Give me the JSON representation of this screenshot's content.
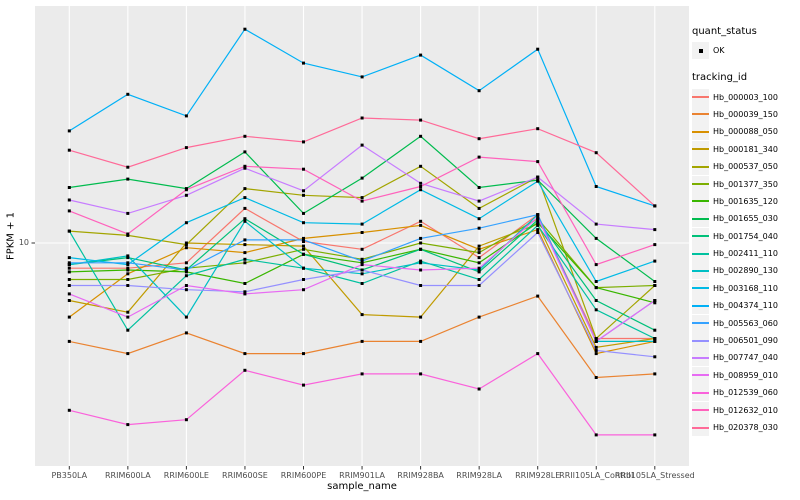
{
  "chart_data": {
    "type": "line",
    "title": "",
    "xlabel": "sample_name",
    "ylabel": "FPKM + 1",
    "y_scale": "log10",
    "y_ticks": [
      10
    ],
    "ylim": [
      2.6,
      45
    ],
    "grid": "major-only",
    "legend_position": "right",
    "point_marker": "small black square (quant_status)",
    "panel_background": "#EBEBEB",
    "gridline_color": "#FFFFFF",
    "categories": [
      "PB350LA",
      "RRIM600LA",
      "RRIM600LE",
      "RRIM600SE",
      "RRIM600PE",
      "RRIM901LA",
      "RRIM928BA",
      "RRIM928LA",
      "RRIM928LE",
      "RRII105LA_Control",
      "RRII105LA_Stressed"
    ],
    "legend": {
      "quant_status_title": "quant_status",
      "ok_label": "OK",
      "tracking_id_title": "tracking_id"
    },
    "series": [
      {
        "name": "Hb_000003_100",
        "color": "#F8766D",
        "values": [
          8.5,
          8.5,
          8.8,
          12.5,
          10.1,
          9.6,
          11.5,
          9.1,
          12.0,
          5.4,
          5.4
        ]
      },
      {
        "name": "Hb_000039_150",
        "color": "#EA8331",
        "values": [
          5.3,
          4.9,
          5.6,
          4.9,
          4.9,
          5.3,
          5.3,
          6.2,
          7.1,
          4.2,
          4.3
        ]
      },
      {
        "name": "Hb_000088_050",
        "color": "#D89000",
        "values": [
          6.2,
          8.2,
          9.7,
          9.4,
          10.3,
          10.7,
          11.2,
          9.6,
          10.9,
          4.9,
          5.3
        ]
      },
      {
        "name": "Hb_000181_340",
        "color": "#C09B00",
        "values": [
          6.9,
          6.4,
          10.0,
          9.9,
          9.8,
          6.3,
          6.2,
          9.8,
          11.3,
          5.1,
          5.4
        ]
      },
      {
        "name": "Hb_000537_050",
        "color": "#A3A500",
        "values": [
          10.8,
          10.5,
          9.9,
          14.2,
          13.6,
          13.4,
          16.4,
          12.5,
          15.3,
          5.4,
          7.6
        ]
      },
      {
        "name": "Hb_001377_350",
        "color": "#7CAE00",
        "values": [
          7.9,
          7.9,
          8.5,
          8.8,
          9.6,
          9.0,
          10.0,
          9.4,
          11.7,
          7.5,
          7.6
        ]
      },
      {
        "name": "Hb_001635_120",
        "color": "#39B600",
        "values": [
          8.3,
          8.4,
          8.3,
          7.7,
          9.3,
          8.8,
          9.6,
          8.8,
          11.4,
          7.5,
          6.8
        ]
      },
      {
        "name": "Hb_001655_030",
        "color": "#00BB4E",
        "values": [
          14.3,
          15.1,
          14.2,
          18.0,
          12.1,
          15.2,
          19.9,
          14.3,
          15.0,
          10.3,
          7.8
        ]
      },
      {
        "name": "Hb_001754_040",
        "color": "#00C079",
        "values": [
          8.7,
          9.1,
          8.4,
          11.7,
          9.3,
          8.4,
          9.6,
          8.3,
          11.6,
          6.9,
          5.7
        ]
      },
      {
        "name": "Hb_002411_110",
        "color": "#00C19F",
        "values": [
          10.8,
          5.7,
          8.1,
          9.0,
          8.5,
          7.7,
          8.9,
          7.9,
          11.2,
          6.5,
          5.4
        ]
      },
      {
        "name": "Hb_002890_130",
        "color": "#00BFC4",
        "values": [
          8.7,
          9.2,
          6.2,
          11.5,
          8.5,
          8.2,
          8.8,
          8.4,
          12.0,
          5.3,
          5.3
        ]
      },
      {
        "name": "Hb_003168_110",
        "color": "#00BAE5",
        "values": [
          9.1,
          8.7,
          11.4,
          13.4,
          11.4,
          11.3,
          14.1,
          11.7,
          14.9,
          7.8,
          8.9
        ]
      },
      {
        "name": "Hb_004374_110",
        "color": "#00B0F6",
        "values": [
          20.6,
          26.1,
          22.7,
          39.7,
          31.9,
          29.2,
          33.6,
          26.7,
          34.9,
          14.4,
          12.7
        ]
      },
      {
        "name": "Hb_005563_060",
        "color": "#35A2FF",
        "values": [
          8.8,
          8.8,
          8.4,
          10.2,
          10.2,
          8.9,
          10.3,
          11.0,
          12.0,
          5.3,
          6.9
        ]
      },
      {
        "name": "Hb_006501_090",
        "color": "#9590FF",
        "values": [
          7.6,
          7.6,
          7.4,
          7.3,
          7.9,
          8.4,
          7.6,
          7.6,
          10.7,
          5.0,
          4.8
        ]
      },
      {
        "name": "Hb_007747_040",
        "color": "#C77CFF",
        "values": [
          13.2,
          12.1,
          13.6,
          16.2,
          14.0,
          18.8,
          14.7,
          13.1,
          15.3,
          11.3,
          10.9
        ]
      },
      {
        "name": "Hb_008959_010",
        "color": "#E76BF3",
        "values": [
          7.2,
          6.2,
          7.6,
          7.2,
          7.4,
          8.7,
          8.4,
          8.5,
          11.8,
          5.3,
          6.9
        ]
      },
      {
        "name": "Hb_012539_060",
        "color": "#FA62DB",
        "values": [
          3.4,
          3.1,
          3.2,
          4.4,
          4.0,
          4.3,
          4.3,
          3.9,
          4.9,
          2.9,
          2.9
        ]
      },
      {
        "name": "Hb_012632_010",
        "color": "#FF62BC",
        "values": [
          12.3,
          10.6,
          14.1,
          16.4,
          16.1,
          13.1,
          14.4,
          17.4,
          16.9,
          8.7,
          9.9
        ]
      },
      {
        "name": "Hb_020378_030",
        "color": "#FF6A98",
        "values": [
          18.2,
          16.3,
          18.5,
          19.9,
          19.2,
          22.4,
          22.1,
          19.6,
          20.9,
          17.9,
          12.7
        ]
      }
    ]
  }
}
